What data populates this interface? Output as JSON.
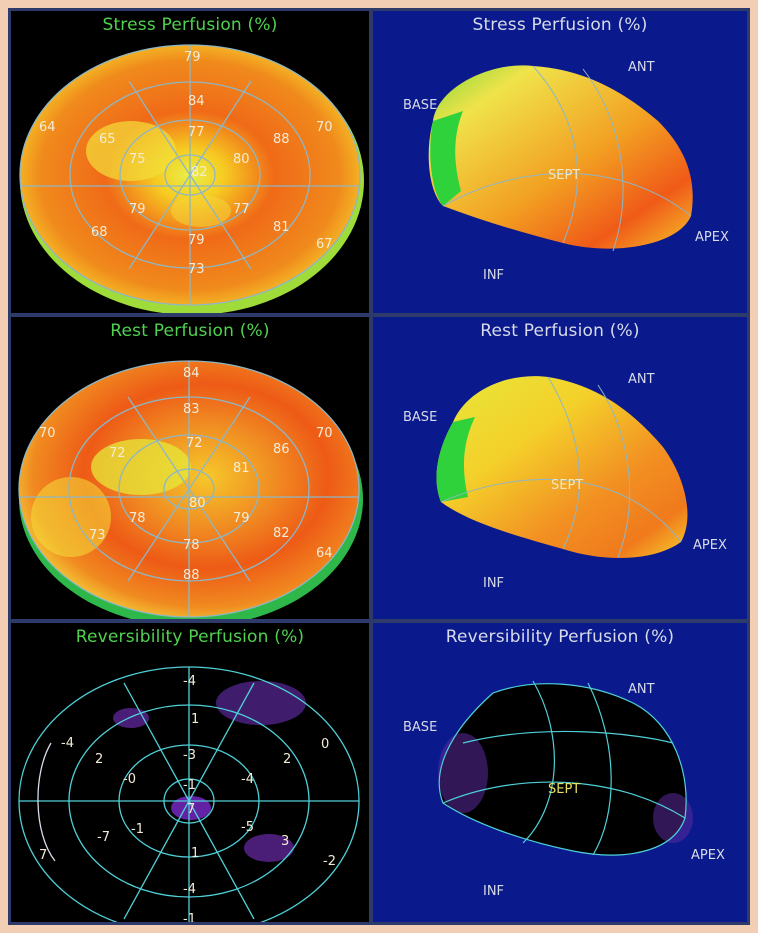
{
  "panels": {
    "stress_bullseye": {
      "title": "Stress Perfusion (%)",
      "values": {
        "outer": [
          "79",
          "70",
          "67",
          "78",
          "68",
          "64"
        ],
        "mid": [
          "84",
          "88",
          "81",
          "73",
          "68",
          "65"
        ],
        "inner": [
          "77",
          "80",
          "77",
          "79",
          "79",
          "75"
        ],
        "apex": "82"
      }
    },
    "stress_3d": {
      "title": "Stress Perfusion (%)",
      "labels": {
        "ant": "ANT",
        "base": "BASE",
        "sept": "SEPT",
        "apex": "APEX",
        "inf": "INF"
      }
    },
    "rest_bullseye": {
      "title": "Rest Perfusion (%)",
      "values": {
        "outer": [
          "84",
          "70",
          "64",
          "88",
          "73",
          "70"
        ],
        "mid": [
          "83",
          "86",
          "82",
          "78",
          "73",
          "72"
        ],
        "inner": [
          "72",
          "81",
          "79",
          "78",
          "78",
          "72"
        ],
        "apex": "80"
      }
    },
    "rest_3d": {
      "title": "Rest Perfusion (%)",
      "labels": {
        "ant": "ANT",
        "base": "BASE",
        "sept": "SEPT",
        "apex": "APEX",
        "inf": "INF"
      }
    },
    "rev_bullseye": {
      "title": "Reversibility Perfusion (%)",
      "values": {
        "outer": [
          "-4",
          "0",
          "-2",
          "-1",
          "7",
          "-4"
        ],
        "mid": [
          "1",
          "2",
          "3",
          "-4",
          "-7",
          "2"
        ],
        "inner": [
          "-3",
          "-4",
          "-5",
          "1",
          "-1",
          "-0"
        ],
        "apex1": "-1",
        "apex2": "7"
      }
    },
    "rev_3d": {
      "title": "Reversibility Perfusion (%)",
      "labels": {
        "ant": "ANT",
        "base": "BASE",
        "sept": "SEPT",
        "apex": "APEX",
        "inf": "INF"
      }
    }
  },
  "colors": {
    "panel_black": "#000000",
    "panel_blue": "#0a1a8c",
    "grid": "#8fb6c4",
    "title_green": "#4fd24f",
    "label_white": "#d8dbe8"
  }
}
